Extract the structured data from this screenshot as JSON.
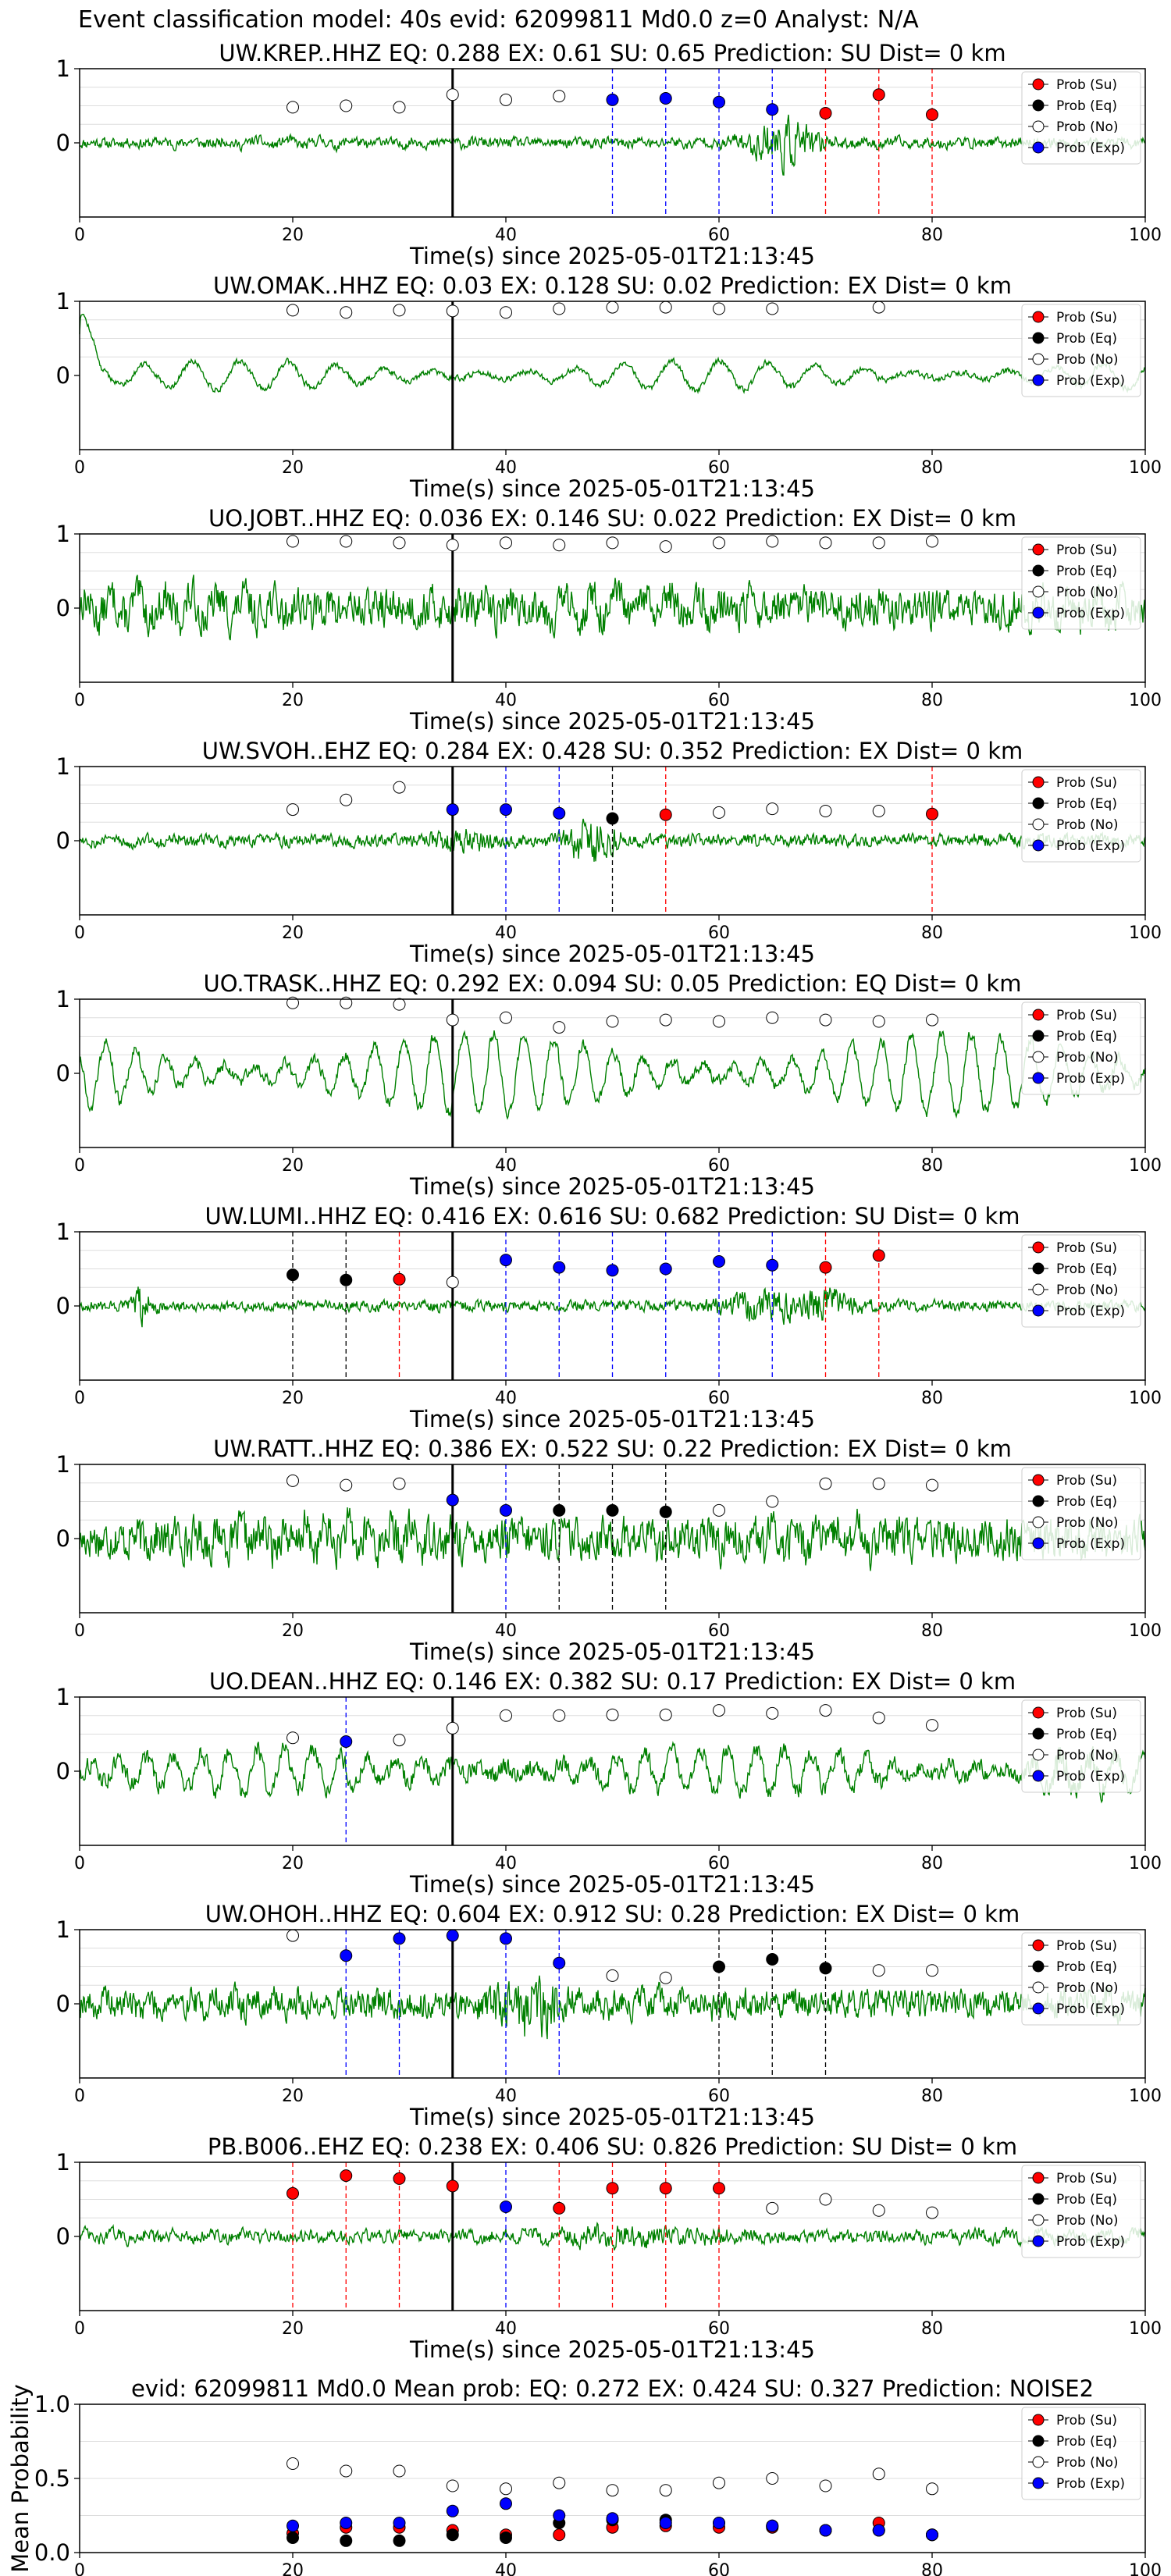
{
  "figure": {
    "title": "Event classification model: 40s evid: 62099811 Md0.0 z=0 Analyst: N/A"
  },
  "colors": {
    "waveform": "#008000",
    "su": "#ff0000",
    "eq": "#000000",
    "no": "#ffffff",
    "exp": "#0000ff",
    "axis": "#000000",
    "grid": "#dddddd"
  },
  "legend_labels": [
    "Prob (Su)",
    "Prob (Eq)",
    "Prob (No)",
    "Prob (Exp)"
  ],
  "chart_data": [
    {
      "type": "line",
      "title": "UW.KREP..HHZ   EQ: 0.288  EX: 0.61  SU: 0.65   Prediction: SU    Dist= 0 km",
      "xlabel": "Time(s) since 2025-05-01T21:13:45",
      "xlim": [
        0,
        100
      ],
      "ylim": [
        -1,
        1
      ],
      "xticks": [
        "0",
        "20",
        "40",
        "60",
        "80",
        "100"
      ],
      "yticks": [
        "0",
        "1"
      ],
      "origin_time": 35,
      "legend": "top-right",
      "series": [
        {
          "name": "Prob (Su)",
          "x": [
            70,
            75,
            80
          ],
          "y": [
            0.4,
            0.65,
            0.38
          ]
        },
        {
          "name": "Prob (Eq)",
          "x": [],
          "y": []
        },
        {
          "name": "Prob (No)",
          "x": [
            20,
            25,
            30,
            35,
            40,
            45
          ],
          "y": [
            0.48,
            0.5,
            0.48,
            0.65,
            0.58,
            0.63
          ]
        },
        {
          "name": "Prob (Exp)",
          "x": [
            50,
            55,
            60,
            65
          ],
          "y": [
            0.58,
            0.6,
            0.55,
            0.45
          ]
        }
      ]
    },
    {
      "type": "line",
      "title": "UW.OMAK..HHZ   EQ: 0.03  EX: 0.128  SU: 0.02   Prediction: EX    Dist= 0 km",
      "xlabel": "Time(s) since 2025-05-01T21:13:45",
      "xlim": [
        0,
        100
      ],
      "ylim": [
        -1,
        1
      ],
      "xticks": [
        "0",
        "20",
        "40",
        "60",
        "80",
        "100"
      ],
      "yticks": [
        "0",
        "1"
      ],
      "origin_time": 35,
      "legend": "top-right",
      "series": [
        {
          "name": "Prob (Su)",
          "x": [],
          "y": []
        },
        {
          "name": "Prob (Eq)",
          "x": [],
          "y": []
        },
        {
          "name": "Prob (No)",
          "x": [
            20,
            25,
            30,
            35,
            40,
            45,
            50,
            55,
            60,
            65,
            75
          ],
          "y": [
            0.88,
            0.85,
            0.88,
            0.87,
            0.85,
            0.9,
            0.92,
            0.92,
            0.9,
            0.9,
            0.92
          ]
        },
        {
          "name": "Prob (Exp)",
          "x": [],
          "y": []
        }
      ]
    },
    {
      "type": "line",
      "title": "UO.JOBT..HHZ   EQ: 0.036  EX: 0.146  SU: 0.022   Prediction: EX    Dist= 0 km",
      "xlabel": "Time(s) since 2025-05-01T21:13:45",
      "xlim": [
        0,
        100
      ],
      "ylim": [
        -1,
        1
      ],
      "xticks": [
        "0",
        "20",
        "40",
        "60",
        "80",
        "100"
      ],
      "yticks": [
        "0",
        "1"
      ],
      "origin_time": 35,
      "legend": "top-right",
      "series": [
        {
          "name": "Prob (Su)",
          "x": [],
          "y": []
        },
        {
          "name": "Prob (Eq)",
          "x": [],
          "y": []
        },
        {
          "name": "Prob (No)",
          "x": [
            20,
            25,
            30,
            35,
            40,
            45,
            50,
            55,
            60,
            65,
            70,
            75,
            80
          ],
          "y": [
            0.9,
            0.9,
            0.88,
            0.85,
            0.88,
            0.85,
            0.88,
            0.83,
            0.88,
            0.9,
            0.88,
            0.88,
            0.9
          ]
        },
        {
          "name": "Prob (Exp)",
          "x": [],
          "y": []
        }
      ]
    },
    {
      "type": "line",
      "title": "UW.SVOH..EHZ   EQ: 0.284  EX: 0.428  SU: 0.352   Prediction: EX    Dist= 0 km",
      "xlabel": "Time(s) since 2025-05-01T21:13:45",
      "xlim": [
        0,
        100
      ],
      "ylim": [
        -1,
        1
      ],
      "xticks": [
        "0",
        "20",
        "40",
        "60",
        "80",
        "100"
      ],
      "yticks": [
        "0",
        "1"
      ],
      "origin_time": 35,
      "legend": "top-right",
      "series": [
        {
          "name": "Prob (Su)",
          "x": [
            55,
            80
          ],
          "y": [
            0.35,
            0.36
          ]
        },
        {
          "name": "Prob (Eq)",
          "x": [
            50
          ],
          "y": [
            0.3
          ]
        },
        {
          "name": "Prob (No)",
          "x": [
            20,
            25,
            30,
            60,
            65,
            70,
            75
          ],
          "y": [
            0.42,
            0.55,
            0.72,
            0.38,
            0.43,
            0.4,
            0.4
          ]
        },
        {
          "name": "Prob (Exp)",
          "x": [
            35,
            40,
            45
          ],
          "y": [
            0.42,
            0.42,
            0.37
          ]
        }
      ]
    },
    {
      "type": "line",
      "title": "UO.TRASK..HHZ   EQ: 0.292  EX: 0.094  SU: 0.05   Prediction: EQ    Dist= 0 km",
      "xlabel": "Time(s) since 2025-05-01T21:13:45",
      "xlim": [
        0,
        100
      ],
      "ylim": [
        -1,
        1
      ],
      "xticks": [
        "0",
        "20",
        "40",
        "60",
        "80",
        "100"
      ],
      "yticks": [
        "0",
        "1"
      ],
      "origin_time": 35,
      "legend": "top-right",
      "series": [
        {
          "name": "Prob (Su)",
          "x": [],
          "y": []
        },
        {
          "name": "Prob (Eq)",
          "x": [],
          "y": []
        },
        {
          "name": "Prob (No)",
          "x": [
            20,
            25,
            30,
            35,
            40,
            45,
            50,
            55,
            60,
            65,
            70,
            75,
            80
          ],
          "y": [
            0.95,
            0.95,
            0.93,
            0.72,
            0.75,
            0.62,
            0.7,
            0.72,
            0.7,
            0.75,
            0.72,
            0.7,
            0.72
          ]
        },
        {
          "name": "Prob (Exp)",
          "x": [],
          "y": []
        }
      ]
    },
    {
      "type": "line",
      "title": "UW.LUMI..HHZ   EQ: 0.416  EX: 0.616  SU: 0.682   Prediction: SU    Dist= 0 km",
      "xlabel": "Time(s) since 2025-05-01T21:13:45",
      "xlim": [
        0,
        100
      ],
      "ylim": [
        -1,
        1
      ],
      "xticks": [
        "0",
        "20",
        "40",
        "60",
        "80",
        "100"
      ],
      "yticks": [
        "0",
        "1"
      ],
      "origin_time": 35,
      "legend": "top-right",
      "series": [
        {
          "name": "Prob (Su)",
          "x": [
            30,
            70,
            75
          ],
          "y": [
            0.36,
            0.52,
            0.68
          ]
        },
        {
          "name": "Prob (Eq)",
          "x": [
            20,
            25
          ],
          "y": [
            0.42,
            0.35
          ]
        },
        {
          "name": "Prob (No)",
          "x": [
            35
          ],
          "y": [
            0.32
          ]
        },
        {
          "name": "Prob (Exp)",
          "x": [
            40,
            45,
            50,
            55,
            60,
            65
          ],
          "y": [
            0.62,
            0.52,
            0.48,
            0.5,
            0.6,
            0.55
          ]
        }
      ]
    },
    {
      "type": "line",
      "title": "UW.RATT..HHZ   EQ: 0.386  EX: 0.522  SU: 0.22   Prediction: EX    Dist= 0 km",
      "xlabel": "Time(s) since 2025-05-01T21:13:45",
      "xlim": [
        0,
        100
      ],
      "ylim": [
        -1,
        1
      ],
      "xticks": [
        "0",
        "20",
        "40",
        "60",
        "80",
        "100"
      ],
      "yticks": [
        "0",
        "1"
      ],
      "origin_time": 35,
      "legend": "top-right",
      "series": [
        {
          "name": "Prob (Su)",
          "x": [],
          "y": []
        },
        {
          "name": "Prob (Eq)",
          "x": [
            45,
            50,
            55
          ],
          "y": [
            0.38,
            0.38,
            0.36
          ]
        },
        {
          "name": "Prob (No)",
          "x": [
            20,
            25,
            30,
            60,
            65,
            70,
            75,
            80
          ],
          "y": [
            0.78,
            0.72,
            0.74,
            0.38,
            0.5,
            0.74,
            0.74,
            0.72
          ]
        },
        {
          "name": "Prob (Exp)",
          "x": [
            35,
            40
          ],
          "y": [
            0.52,
            0.38
          ]
        }
      ]
    },
    {
      "type": "line",
      "title": "UO.DEAN..HHZ   EQ: 0.146  EX: 0.382  SU: 0.17   Prediction: EX    Dist= 0 km",
      "xlabel": "Time(s) since 2025-05-01T21:13:45",
      "xlim": [
        0,
        100
      ],
      "ylim": [
        -1,
        1
      ],
      "xticks": [
        "0",
        "20",
        "40",
        "60",
        "80",
        "100"
      ],
      "yticks": [
        "0",
        "1"
      ],
      "origin_time": 35,
      "legend": "top-right",
      "series": [
        {
          "name": "Prob (Su)",
          "x": [],
          "y": []
        },
        {
          "name": "Prob (Eq)",
          "x": [],
          "y": []
        },
        {
          "name": "Prob (No)",
          "x": [
            20,
            30,
            35,
            40,
            45,
            50,
            55,
            60,
            65,
            70,
            75,
            80
          ],
          "y": [
            0.45,
            0.42,
            0.58,
            0.75,
            0.75,
            0.76,
            0.76,
            0.82,
            0.78,
            0.82,
            0.72,
            0.62
          ]
        },
        {
          "name": "Prob (Exp)",
          "x": [
            25
          ],
          "y": [
            0.4
          ]
        }
      ]
    },
    {
      "type": "line",
      "title": "UW.OHOH..HHZ   EQ: 0.604  EX: 0.912  SU: 0.28   Prediction: EX    Dist= 0 km",
      "xlabel": "Time(s) since 2025-05-01T21:13:45",
      "xlim": [
        0,
        100
      ],
      "ylim": [
        -1,
        1
      ],
      "xticks": [
        "0",
        "20",
        "40",
        "60",
        "80",
        "100"
      ],
      "yticks": [
        "0",
        "1"
      ],
      "origin_time": 35,
      "legend": "top-right",
      "series": [
        {
          "name": "Prob (Su)",
          "x": [],
          "y": []
        },
        {
          "name": "Prob (Eq)",
          "x": [
            60,
            65,
            70
          ],
          "y": [
            0.5,
            0.6,
            0.48
          ]
        },
        {
          "name": "Prob (No)",
          "x": [
            20,
            50,
            55,
            75,
            80
          ],
          "y": [
            0.92,
            0.38,
            0.35,
            0.45,
            0.45
          ]
        },
        {
          "name": "Prob (Exp)",
          "x": [
            25,
            30,
            35,
            40,
            45
          ],
          "y": [
            0.65,
            0.88,
            0.92,
            0.88,
            0.55
          ]
        }
      ]
    },
    {
      "type": "line",
      "title": "PB.B006..EHZ   EQ: 0.238  EX: 0.406  SU: 0.826   Prediction: SU    Dist= 0 km",
      "xlabel": "Time(s) since 2025-05-01T21:13:45",
      "xlim": [
        0,
        100
      ],
      "ylim": [
        -1,
        1
      ],
      "xticks": [
        "0",
        "20",
        "40",
        "60",
        "80",
        "100"
      ],
      "yticks": [
        "0",
        "1"
      ],
      "origin_time": 35,
      "legend": "top-right",
      "series": [
        {
          "name": "Prob (Su)",
          "x": [
            20,
            25,
            30,
            35,
            45,
            50,
            55,
            60
          ],
          "y": [
            0.58,
            0.82,
            0.78,
            0.68,
            0.38,
            0.65,
            0.65,
            0.65
          ]
        },
        {
          "name": "Prob (Eq)",
          "x": [],
          "y": []
        },
        {
          "name": "Prob (No)",
          "x": [
            65,
            70,
            75,
            80
          ],
          "y": [
            0.38,
            0.5,
            0.35,
            0.32
          ]
        },
        {
          "name": "Prob (Exp)",
          "x": [
            40
          ],
          "y": [
            0.4
          ]
        }
      ]
    },
    {
      "type": "scatter",
      "title": "evid: 62099811  Md0.0   Mean prob:   EQ: 0.272  EX: 0.424  SU: 0.327   Prediction: NOISE2",
      "ylabel": "Mean Probability",
      "xlim": [
        0,
        100
      ],
      "ylim": [
        0,
        1
      ],
      "xticks": [
        "0",
        "20",
        "40",
        "60",
        "80",
        "100"
      ],
      "yticks": [
        "0.0",
        "0.5",
        "1.0"
      ],
      "legend": "top-right",
      "series": [
        {
          "name": "Prob (Su)",
          "x": [
            20,
            25,
            30,
            35,
            40,
            45,
            50,
            55,
            60,
            65,
            70,
            75,
            80
          ],
          "y": [
            0.13,
            0.17,
            0.17,
            0.15,
            0.12,
            0.12,
            0.17,
            0.18,
            0.17,
            0.17,
            0.15,
            0.2,
            0.12
          ]
        },
        {
          "name": "Prob (Eq)",
          "x": [
            20,
            25,
            30,
            35,
            40,
            45,
            50,
            55,
            60,
            65,
            70,
            75,
            80
          ],
          "y": [
            0.1,
            0.08,
            0.08,
            0.12,
            0.1,
            0.2,
            0.22,
            0.22,
            0.2,
            0.18,
            0.15,
            0.15,
            0.12
          ]
        },
        {
          "name": "Prob (No)",
          "x": [
            20,
            25,
            30,
            35,
            40,
            45,
            50,
            55,
            60,
            65,
            70,
            75,
            80
          ],
          "y": [
            0.6,
            0.55,
            0.55,
            0.45,
            0.43,
            0.47,
            0.42,
            0.42,
            0.47,
            0.5,
            0.45,
            0.53,
            0.43
          ]
        },
        {
          "name": "Prob (Exp)",
          "x": [
            20,
            25,
            30,
            35,
            40,
            45,
            50,
            55,
            60,
            65,
            70,
            75,
            80
          ],
          "y": [
            0.18,
            0.2,
            0.2,
            0.28,
            0.33,
            0.25,
            0.23,
            0.2,
            0.2,
            0.18,
            0.15,
            0.15,
            0.12
          ]
        }
      ]
    }
  ]
}
